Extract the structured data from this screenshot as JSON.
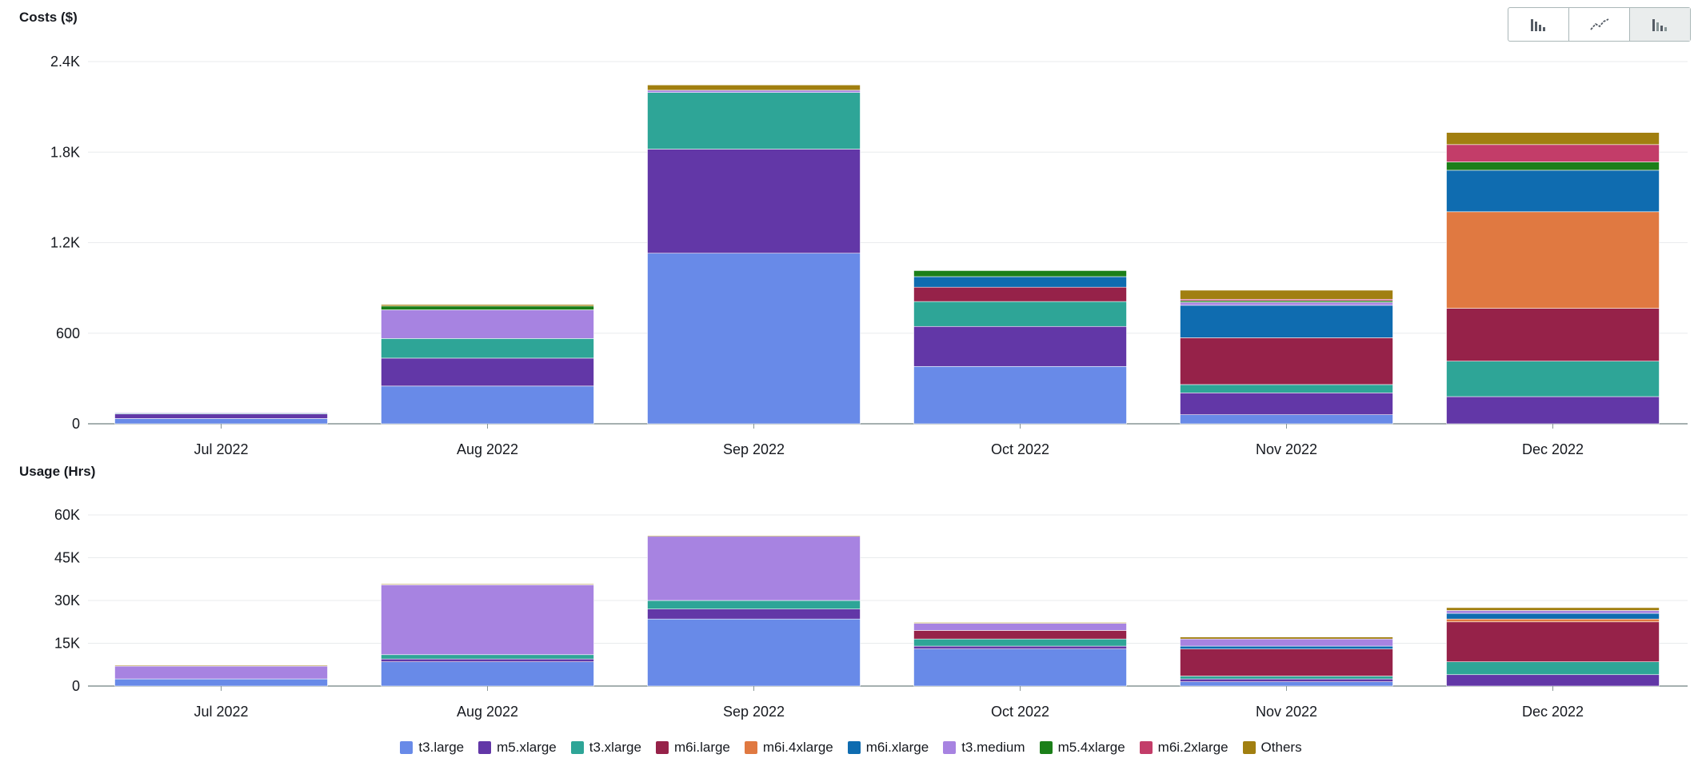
{
  "toggle": {
    "options": [
      {
        "icon": "bar-chart-icon"
      },
      {
        "icon": "line-chart-icon"
      },
      {
        "icon": "stacked-bar-chart-icon",
        "active": true
      }
    ]
  },
  "chart_data": [
    {
      "type": "bar",
      "stacked": true,
      "title": "Costs ($)",
      "categories": [
        "Jul 2022",
        "Aug 2022",
        "Sep 2022",
        "Oct 2022",
        "Nov 2022",
        "Dec 2022"
      ],
      "ylim": [
        0,
        2400
      ],
      "yticks": [
        0,
        600,
        1200,
        1800,
        2400
      ],
      "ytick_labels": [
        "0",
        "600",
        "1.2K",
        "1.8K",
        "2.4K"
      ],
      "grid": true,
      "series": [
        {
          "name": "t3.large",
          "color": "#688ae8",
          "values": [
            35,
            250,
            1130,
            380,
            60,
            0
          ]
        },
        {
          "name": "m5.xlarge",
          "color": "#6237a7",
          "values": [
            30,
            185,
            690,
            265,
            145,
            180
          ]
        },
        {
          "name": "t3.xlarge",
          "color": "#2ea597",
          "values": [
            5,
            130,
            375,
            165,
            55,
            235
          ]
        },
        {
          "name": "m6i.large",
          "color": "#962249",
          "values": [
            0,
            0,
            0,
            95,
            310,
            350
          ]
        },
        {
          "name": "m6i.4xlarge",
          "color": "#e07941",
          "values": [
            0,
            0,
            0,
            0,
            0,
            640
          ]
        },
        {
          "name": "m6i.xlarge",
          "color": "#0f6cb0",
          "values": [
            0,
            0,
            0,
            70,
            215,
            275
          ]
        },
        {
          "name": "t3.medium",
          "color": "#a783e1",
          "values": [
            5,
            190,
            15,
            0,
            20,
            0
          ]
        },
        {
          "name": "m5.4xlarge",
          "color": "#1b7f19",
          "values": [
            0,
            25,
            0,
            40,
            10,
            55
          ]
        },
        {
          "name": "m6i.2xlarge",
          "color": "#c33d69",
          "values": [
            0,
            0,
            0,
            0,
            10,
            115
          ]
        },
        {
          "name": "Others",
          "color": "#a17f10",
          "values": [
            0,
            10,
            35,
            0,
            60,
            80
          ]
        }
      ]
    },
    {
      "type": "bar",
      "stacked": true,
      "title": "Usage (Hrs)",
      "categories": [
        "Jul 2022",
        "Aug 2022",
        "Sep 2022",
        "Oct 2022",
        "Nov 2022",
        "Dec 2022"
      ],
      "ylim": [
        0,
        60000
      ],
      "yticks": [
        0,
        15000,
        30000,
        45000,
        60000
      ],
      "ytick_labels": [
        "0",
        "15K",
        "30K",
        "45K",
        "60K"
      ],
      "grid": true,
      "series": [
        {
          "name": "t3.large",
          "color": "#688ae8",
          "values": [
            2500,
            8500,
            23500,
            13000,
            1500,
            0
          ]
        },
        {
          "name": "m5.xlarge",
          "color": "#6237a7",
          "values": [
            0,
            1000,
            3500,
            1000,
            1000,
            4000
          ]
        },
        {
          "name": "t3.xlarge",
          "color": "#2ea597",
          "values": [
            0,
            1500,
            3000,
            2500,
            1000,
            4500
          ]
        },
        {
          "name": "m6i.large",
          "color": "#962249",
          "values": [
            0,
            0,
            0,
            3000,
            9500,
            14000
          ]
        },
        {
          "name": "m6i.4xlarge",
          "color": "#e07941",
          "values": [
            0,
            0,
            0,
            0,
            0,
            1000
          ]
        },
        {
          "name": "m6i.xlarge",
          "color": "#0f6cb0",
          "values": [
            0,
            0,
            0,
            0,
            1000,
            2000
          ]
        },
        {
          "name": "t3.medium",
          "color": "#a783e1",
          "values": [
            4500,
            24500,
            22500,
            2500,
            2500,
            1000
          ]
        },
        {
          "name": "m5.4xlarge",
          "color": "#1b7f19",
          "values": [
            0,
            0,
            0,
            0,
            0,
            0
          ]
        },
        {
          "name": "m6i.2xlarge",
          "color": "#c33d69",
          "values": [
            0,
            0,
            0,
            0,
            0,
            0
          ]
        },
        {
          "name": "Others",
          "color": "#a17f10",
          "values": [
            300,
            300,
            300,
            300,
            700,
            1000
          ]
        }
      ]
    }
  ]
}
